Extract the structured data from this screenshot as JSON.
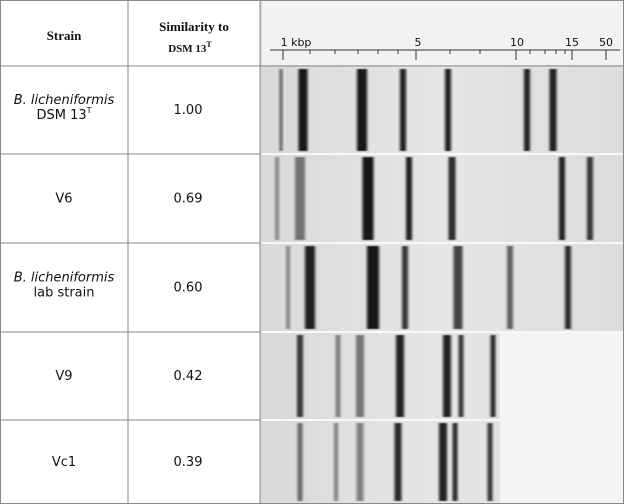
{
  "header": {
    "strain": "Strain",
    "similarity": "Similarity to",
    "reference": "DSM 13",
    "reference_sup": "T"
  },
  "ladder": {
    "labels": [
      "1 kbp",
      "5",
      "10",
      "15",
      "50"
    ]
  },
  "rows": [
    {
      "species": "B. licheniformis",
      "strain": "DSM 13",
      "strain_sup": "T",
      "similarity": "1.00"
    },
    {
      "strain": "V6",
      "similarity": "0.69"
    },
    {
      "species": "B. licheniformis",
      "strain": "lab strain",
      "similarity": "0.60"
    },
    {
      "strain": "V9",
      "similarity": "0.42"
    },
    {
      "strain": "Vc1",
      "similarity": "0.39"
    }
  ]
}
